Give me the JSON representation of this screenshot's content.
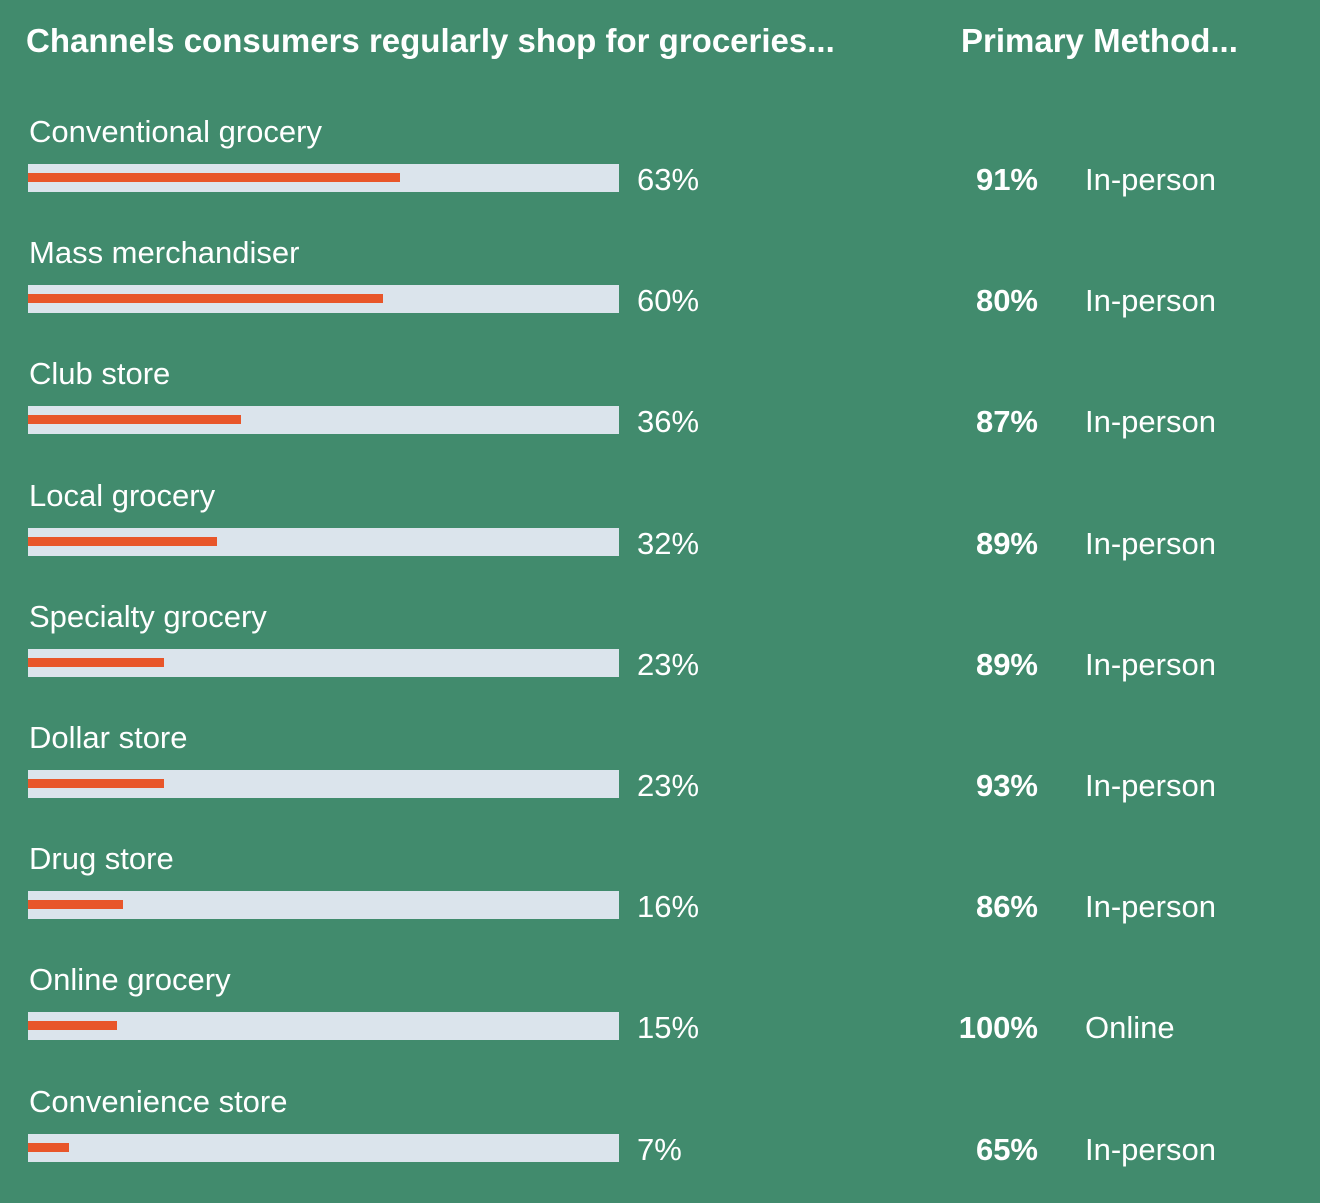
{
  "chart_data": {
    "type": "bar",
    "title": "Channels consumers regularly shop for groceries...",
    "secondary_title": "Primary Method...",
    "categories": [
      "Conventional grocery",
      "Mass merchandiser",
      "Club store",
      "Local grocery",
      "Specialty grocery",
      "Dollar store",
      "Drug store",
      "Online grocery",
      "Convenience store"
    ],
    "values": [
      63,
      60,
      36,
      32,
      23,
      23,
      16,
      15,
      7
    ],
    "value_labels": [
      "63%",
      "60%",
      "36%",
      "32%",
      "23%",
      "23%",
      "16%",
      "15%",
      "7%"
    ],
    "primary_method_values": [
      91,
      80,
      87,
      89,
      89,
      93,
      86,
      100,
      65
    ],
    "primary_method_labels": [
      "91%",
      "80%",
      "87%",
      "89%",
      "89%",
      "93%",
      "86%",
      "100%",
      "65%"
    ],
    "primary_methods": [
      "In-person",
      "In-person",
      "In-person",
      "In-person",
      "In-person",
      "In-person",
      "In-person",
      "Online",
      "In-person"
    ],
    "xlim": [
      0,
      100
    ],
    "orientation": "horizontal",
    "grid": false
  },
  "colors": {
    "background": "#418b6d",
    "bar_track": "#dbe4ec",
    "bar_fill": "#e8562a",
    "text": "#ffffff"
  }
}
